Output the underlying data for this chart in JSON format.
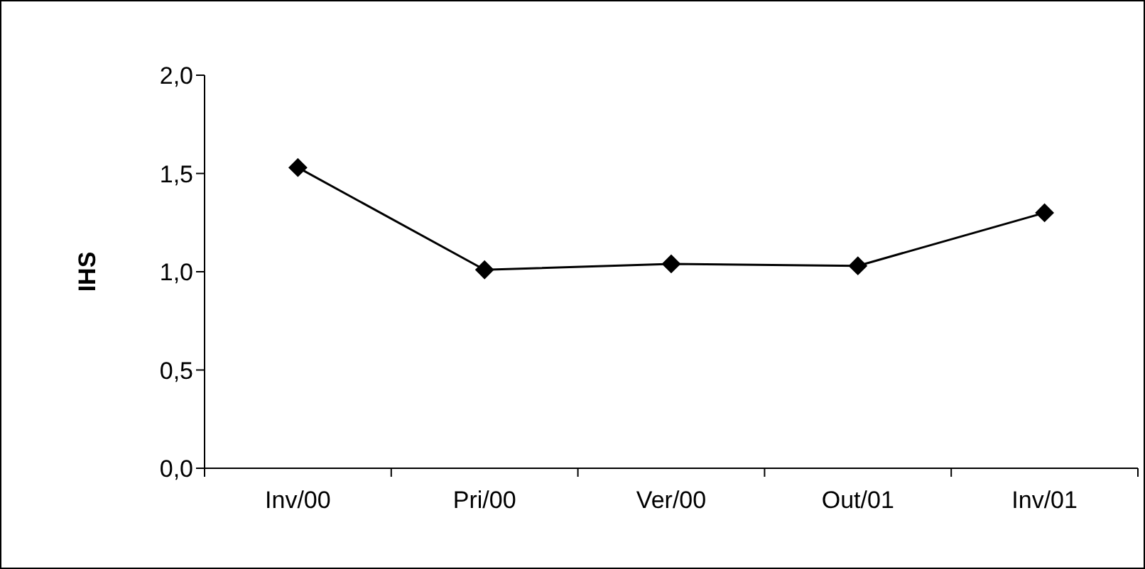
{
  "chart_data": {
    "type": "line",
    "ylabel": "IHS",
    "categories": [
      "Inv/00",
      "Pri/00",
      "Ver/00",
      "Out/01",
      "Inv/01"
    ],
    "series": [
      {
        "color": "#000000",
        "values": [
          1.53,
          1.01,
          1.04,
          1.03,
          1.3
        ]
      }
    ],
    "ylim": [
      0,
      2
    ],
    "yticks": [
      {
        "value": 0,
        "label": "0,0"
      },
      {
        "value": 0.5,
        "label": "0,5"
      },
      {
        "value": 1,
        "label": "1,0"
      },
      {
        "value": 1.5,
        "label": "1,5"
      },
      {
        "value": 2,
        "label": "2,0"
      }
    ],
    "grid": false,
    "legend": false,
    "marker": "diamond",
    "line_style": "solid"
  }
}
